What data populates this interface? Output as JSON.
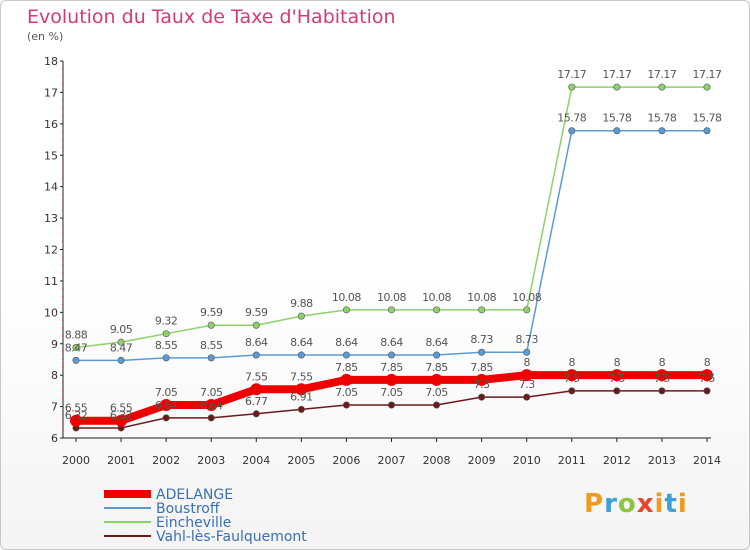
{
  "header": {
    "title": "Evolution du Taux de Taxe d'Habitation",
    "subtitle": "(en %)"
  },
  "logo": {
    "text": "Proxiti"
  },
  "chart_data": {
    "type": "line",
    "title": "Evolution du Taux de Taxe d'Habitation",
    "ylabel": "(en %)",
    "ylim": [
      6,
      18
    ],
    "yticks": [
      6,
      7,
      8,
      9,
      10,
      11,
      12,
      13,
      14,
      15,
      16,
      17,
      18
    ],
    "x": [
      "2000",
      "2001",
      "2002",
      "2003",
      "2004",
      "2005",
      "2006",
      "2007",
      "2008",
      "2009",
      "2010",
      "2011",
      "2012",
      "2013",
      "2014"
    ],
    "grid": false,
    "legend_position": "bottom-left",
    "series": [
      {
        "name": "Vahl-lès-Faulquemont",
        "color": "#6b1a1a",
        "values": [
          6.32,
          6.32,
          6.64,
          6.64,
          6.77,
          6.91,
          7.05,
          7.05,
          7.05,
          7.3,
          7.3,
          7.5,
          7.5,
          7.5,
          7.5
        ],
        "labels": [
          "6.32",
          "6.32",
          "6.64",
          "6.64",
          "6.77",
          "6.91",
          "7.05",
          "7.05",
          "7.05",
          "7.3",
          "7.3",
          "7.5",
          "7.5",
          "7.5",
          "7.5"
        ]
      },
      {
        "name": "Boustroff",
        "color": "#5b9bd5",
        "values": [
          8.47,
          8.47,
          8.55,
          8.55,
          8.64,
          8.64,
          8.64,
          8.64,
          8.64,
          8.73,
          8.73,
          15.78,
          15.78,
          15.78,
          15.78
        ],
        "labels": [
          "8.47",
          "8.47",
          "8.55",
          "8.55",
          "8.64",
          "8.64",
          "8.64",
          "8.64",
          "8.64",
          "8.73",
          "8.73",
          "15.78",
          "15.78",
          "15.78",
          "15.78"
        ]
      },
      {
        "name": "Eincheville",
        "color": "#8ed16a",
        "values": [
          8.88,
          9.05,
          9.32,
          9.59,
          9.59,
          9.88,
          10.08,
          10.08,
          10.08,
          10.08,
          10.08,
          17.17,
          17.17,
          17.17,
          17.17
        ],
        "labels": [
          "8.88",
          "9.05",
          "9.32",
          "9.59",
          "9.59",
          "9.88",
          "10.08",
          "10.08",
          "10.08",
          "10.08",
          "10.08",
          "17.17",
          "17.17",
          "17.17",
          "17.17"
        ]
      },
      {
        "name": "ADELANGE",
        "color": "#ee0000",
        "values": [
          6.55,
          6.55,
          7.05,
          7.05,
          7.55,
          7.55,
          7.85,
          7.85,
          7.85,
          7.85,
          8,
          8,
          8,
          8,
          8
        ],
        "labels": [
          "6.55",
          "6.55",
          "7.05",
          "7.05",
          "7.55",
          "7.55",
          "7.85",
          "7.85",
          "7.85",
          "7.85",
          "8",
          "8",
          "8",
          "8",
          "8"
        ]
      }
    ],
    "legend": [
      "ADELANGE",
      "Boustroff",
      "Eincheville",
      "Vahl-lès-Faulquemont"
    ]
  }
}
